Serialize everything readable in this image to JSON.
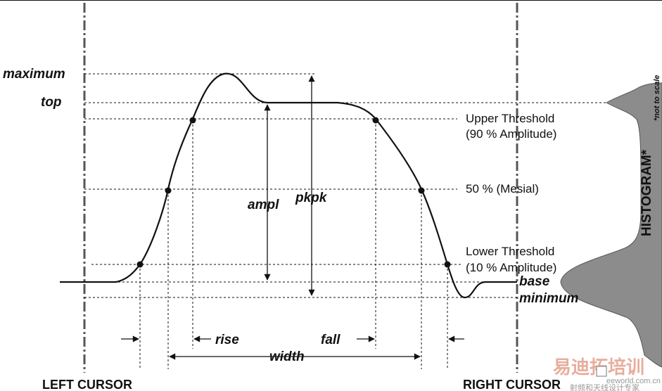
{
  "labels": {
    "maximum": "maximum",
    "top": "top",
    "upper_threshold_line1": "Upper Threshold",
    "upper_threshold_line2": "(90 % Amplitude)",
    "mesial": "50 % (Mesial)",
    "lower_threshold_line1": "Lower Threshold",
    "lower_threshold_line2": "(10 % Amplitude)",
    "base": "base",
    "minimum": "minimum",
    "ampl": "ampl",
    "pkpk": "pkpk",
    "rise": "rise",
    "fall": "fall",
    "width": "width",
    "left_cursor": "LEFT CURSOR",
    "right_cursor": "RIGHT CURSOR",
    "histogram": "HISTOGRAM*",
    "histogram_note": "*not to scale"
  },
  "watermark": {
    "brand_cn": "易迪拓培训",
    "sub_cn": "射频和天线设计专家",
    "site": "eeworld.com.cn"
  },
  "colors": {
    "line": "#111111",
    "histogram_fill": "#8c8c8c",
    "cursor": "#555555"
  }
}
